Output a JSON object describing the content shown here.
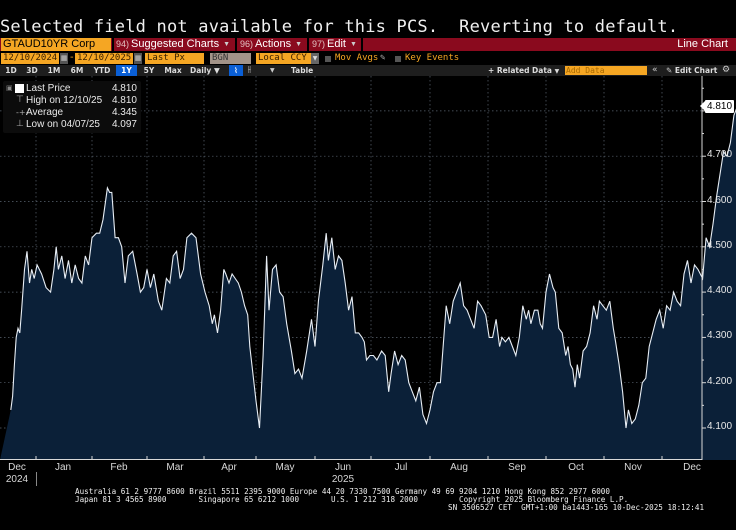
{
  "message": "Selected field not available for this PCS.  Reverting to default.",
  "toolbar": {
    "ticker": "GTAUD10YR Corp",
    "menus": [
      {
        "num": "94)",
        "label": "Suggested Charts"
      },
      {
        "num": "96)",
        "label": "Actions"
      },
      {
        "num": "97)",
        "label": "Edit"
      }
    ],
    "chart_type": "Line Chart"
  },
  "controls": {
    "start_date": "12/10/2024",
    "date_separator": "-",
    "end_date": "12/10/2025",
    "field": "Last Px",
    "source": "BGN",
    "currency": "Local CCY",
    "mov_avgs": "Mov Avgs",
    "key_events": "Key Events"
  },
  "ranges": [
    "1D",
    "3D",
    "1M",
    "6M",
    "YTD",
    "1Y",
    "5Y",
    "Max"
  ],
  "selected_range": "1Y",
  "frequency": "Daily",
  "table_label": "Table",
  "related_data": "Related Data",
  "add_data_placeholder": "Add Data",
  "edit_chart": "Edit Chart",
  "legend": {
    "rows": [
      {
        "label": "Last Price",
        "value": "4.810"
      },
      {
        "label": "High on 12/10/25",
        "value": "4.810"
      },
      {
        "label": "Average",
        "value": "4.345"
      },
      {
        "label": "Low on 04/07/25",
        "value": "4.097"
      }
    ]
  },
  "colors": {
    "accent_orange": "#f5a623",
    "menu_red": "#8a0a1e",
    "area_fill": "#0b2038",
    "line": "#e8eef5",
    "selected_blue": "#0a5fd6"
  },
  "chart_data": {
    "type": "area",
    "title": "GTAUD10YR Corp",
    "ylabel": "",
    "xlabel": "",
    "ylim": [
      4.03,
      4.87
    ],
    "y_ticks": [
      "4.100",
      "4.200",
      "4.300",
      "4.400",
      "4.500",
      "4.600",
      "4.700",
      "4.800"
    ],
    "x_ticks": [
      "Dec",
      "Jan",
      "Feb",
      "Mar",
      "Apr",
      "May",
      "Jun",
      "Jul",
      "Aug",
      "Sep",
      "Oct",
      "Nov",
      "Dec"
    ],
    "x_year_labels": [
      {
        "label": "2024",
        "month_index": 0
      },
      {
        "label": "2025",
        "month_index": 6
      }
    ],
    "last_value_label": "4.810",
    "grid": true,
    "x_unit": "months since 2024-12-10",
    "series": [
      {
        "name": "Last Price",
        "points": [
          [
            0.0,
            4.14
          ],
          [
            0.05,
            4.17
          ],
          [
            0.1,
            4.24
          ],
          [
            0.15,
            4.3
          ],
          [
            0.2,
            4.32
          ],
          [
            0.25,
            4.31
          ],
          [
            0.3,
            4.36
          ],
          [
            0.38,
            4.45
          ],
          [
            0.45,
            4.49
          ],
          [
            0.52,
            4.42
          ],
          [
            0.58,
            4.45
          ],
          [
            0.65,
            4.43
          ],
          [
            0.72,
            4.46
          ],
          [
            0.8,
            4.44
          ],
          [
            0.88,
            4.41
          ],
          [
            0.96,
            4.4
          ],
          [
            1.02,
            4.45
          ],
          [
            1.06,
            4.5
          ],
          [
            1.1,
            4.45
          ],
          [
            1.16,
            4.48
          ],
          [
            1.22,
            4.43
          ],
          [
            1.28,
            4.47
          ],
          [
            1.34,
            4.42
          ],
          [
            1.4,
            4.46
          ],
          [
            1.46,
            4.43
          ],
          [
            1.52,
            4.42
          ],
          [
            1.58,
            4.48
          ],
          [
            1.64,
            4.46
          ],
          [
            1.7,
            4.52
          ],
          [
            1.78,
            4.53
          ],
          [
            1.84,
            4.53
          ],
          [
            1.9,
            4.56
          ],
          [
            1.98,
            4.63
          ],
          [
            2.02,
            4.62
          ],
          [
            2.06,
            4.62
          ],
          [
            2.12,
            4.52
          ],
          [
            2.18,
            4.52
          ],
          [
            2.24,
            4.5
          ],
          [
            2.3,
            4.42
          ],
          [
            2.36,
            4.48
          ],
          [
            2.44,
            4.49
          ],
          [
            2.52,
            4.44
          ],
          [
            2.58,
            4.4
          ],
          [
            2.64,
            4.41
          ],
          [
            2.7,
            4.45
          ],
          [
            2.76,
            4.41
          ],
          [
            2.82,
            4.44
          ],
          [
            2.9,
            4.38
          ],
          [
            2.96,
            4.36
          ],
          [
            3.04,
            4.43
          ],
          [
            3.1,
            4.42
          ],
          [
            3.16,
            4.48
          ],
          [
            3.22,
            4.49
          ],
          [
            3.28,
            4.43
          ],
          [
            3.34,
            4.45
          ],
          [
            3.4,
            4.52
          ],
          [
            3.48,
            4.53
          ],
          [
            3.56,
            4.52
          ],
          [
            3.64,
            4.44
          ],
          [
            3.72,
            4.4
          ],
          [
            3.8,
            4.37
          ],
          [
            3.86,
            4.33
          ],
          [
            3.9,
            4.35
          ],
          [
            3.96,
            4.31
          ],
          [
            4.02,
            4.36
          ],
          [
            4.08,
            4.45
          ],
          [
            4.12,
            4.44
          ],
          [
            4.18,
            4.42
          ],
          [
            4.24,
            4.44
          ],
          [
            4.3,
            4.43
          ],
          [
            4.36,
            4.42
          ],
          [
            4.42,
            4.4
          ],
          [
            4.48,
            4.37
          ],
          [
            4.54,
            4.35
          ],
          [
            4.58,
            4.28
          ],
          [
            4.64,
            4.22
          ],
          [
            4.7,
            4.16
          ],
          [
            4.76,
            4.1
          ],
          [
            4.82,
            4.26
          ],
          [
            4.88,
            4.48
          ],
          [
            4.92,
            4.36
          ],
          [
            4.98,
            4.45
          ],
          [
            5.04,
            4.46
          ],
          [
            5.1,
            4.4
          ],
          [
            5.16,
            4.39
          ],
          [
            5.22,
            4.33
          ],
          [
            5.3,
            4.27
          ],
          [
            5.36,
            4.22
          ],
          [
            5.42,
            4.23
          ],
          [
            5.48,
            4.21
          ],
          [
            5.56,
            4.27
          ],
          [
            5.64,
            4.34
          ],
          [
            5.7,
            4.28
          ],
          [
            5.76,
            4.38
          ],
          [
            5.84,
            4.46
          ],
          [
            5.9,
            4.53
          ],
          [
            5.94,
            4.47
          ],
          [
            6.0,
            4.52
          ],
          [
            6.06,
            4.45
          ],
          [
            6.12,
            4.48
          ],
          [
            6.18,
            4.47
          ],
          [
            6.24,
            4.42
          ],
          [
            6.3,
            4.36
          ],
          [
            6.36,
            4.39
          ],
          [
            6.42,
            4.31
          ],
          [
            6.48,
            4.31
          ],
          [
            6.54,
            4.3
          ],
          [
            6.58,
            4.29
          ],
          [
            6.62,
            4.25
          ],
          [
            6.68,
            4.26
          ],
          [
            6.74,
            4.26
          ],
          [
            6.8,
            4.25
          ],
          [
            6.88,
            4.27
          ],
          [
            6.94,
            4.26
          ],
          [
            7.0,
            4.18
          ],
          [
            7.04,
            4.22
          ],
          [
            7.1,
            4.27
          ],
          [
            7.16,
            4.24
          ],
          [
            7.22,
            4.26
          ],
          [
            7.28,
            4.25
          ],
          [
            7.34,
            4.2
          ],
          [
            7.4,
            4.18
          ],
          [
            7.46,
            4.16
          ],
          [
            7.52,
            4.19
          ],
          [
            7.58,
            4.13
          ],
          [
            7.64,
            4.11
          ],
          [
            7.7,
            4.14
          ],
          [
            7.76,
            4.18
          ],
          [
            7.82,
            4.2
          ],
          [
            7.88,
            4.2
          ],
          [
            7.92,
            4.27
          ],
          [
            7.98,
            4.37
          ],
          [
            8.04,
            4.33
          ],
          [
            8.1,
            4.38
          ],
          [
            8.16,
            4.4
          ],
          [
            8.22,
            4.42
          ],
          [
            8.28,
            4.37
          ],
          [
            8.34,
            4.36
          ],
          [
            8.4,
            4.34
          ],
          [
            8.46,
            4.32
          ],
          [
            8.52,
            4.38
          ],
          [
            8.58,
            4.37
          ],
          [
            8.66,
            4.35
          ],
          [
            8.72,
            4.3
          ],
          [
            8.78,
            4.3
          ],
          [
            8.84,
            4.34
          ],
          [
            8.9,
            4.28
          ],
          [
            8.94,
            4.3
          ],
          [
            9.0,
            4.29
          ],
          [
            9.06,
            4.3
          ],
          [
            9.12,
            4.28
          ],
          [
            9.18,
            4.26
          ],
          [
            9.24,
            4.3
          ],
          [
            9.3,
            4.37
          ],
          [
            9.36,
            4.34
          ],
          [
            9.4,
            4.36
          ],
          [
            9.44,
            4.33
          ],
          [
            9.5,
            4.36
          ],
          [
            9.56,
            4.36
          ],
          [
            9.6,
            4.33
          ],
          [
            9.64,
            4.32
          ],
          [
            9.7,
            4.4
          ],
          [
            9.76,
            4.44
          ],
          [
            9.82,
            4.41
          ],
          [
            9.86,
            4.4
          ],
          [
            9.92,
            4.32
          ],
          [
            9.98,
            4.31
          ],
          [
            10.04,
            4.26
          ],
          [
            10.08,
            4.28
          ],
          [
            10.12,
            4.24
          ],
          [
            10.16,
            4.23
          ],
          [
            10.2,
            4.19
          ],
          [
            10.24,
            4.24
          ],
          [
            10.28,
            4.21
          ],
          [
            10.34,
            4.27
          ],
          [
            10.4,
            4.28
          ],
          [
            10.46,
            4.31
          ],
          [
            10.52,
            4.37
          ],
          [
            10.58,
            4.34
          ],
          [
            10.62,
            4.38
          ],
          [
            10.68,
            4.37
          ],
          [
            10.74,
            4.36
          ],
          [
            10.8,
            4.38
          ],
          [
            10.86,
            4.32
          ],
          [
            10.9,
            4.29
          ],
          [
            10.96,
            4.24
          ],
          [
            11.02,
            4.18
          ],
          [
            11.08,
            4.1
          ],
          [
            11.12,
            4.14
          ],
          [
            11.18,
            4.11
          ],
          [
            11.24,
            4.12
          ],
          [
            11.3,
            4.15
          ],
          [
            11.36,
            4.2
          ],
          [
            11.42,
            4.21
          ],
          [
            11.48,
            4.28
          ],
          [
            11.54,
            4.31
          ],
          [
            11.6,
            4.34
          ],
          [
            11.66,
            4.36
          ],
          [
            11.72,
            4.32
          ],
          [
            11.78,
            4.37
          ],
          [
            11.84,
            4.36
          ],
          [
            11.9,
            4.4
          ],
          [
            11.96,
            4.38
          ],
          [
            12.02,
            4.37
          ],
          [
            12.08,
            4.44
          ],
          [
            12.14,
            4.47
          ],
          [
            12.2,
            4.42
          ],
          [
            12.26,
            4.46
          ],
          [
            12.32,
            4.45
          ],
          [
            12.4,
            4.43
          ],
          [
            12.46,
            4.52
          ],
          [
            12.52,
            4.5
          ],
          [
            12.58,
            4.55
          ],
          [
            12.64,
            4.61
          ],
          [
            12.7,
            4.66
          ],
          [
            12.76,
            4.71
          ],
          [
            12.82,
            4.7
          ],
          [
            12.88,
            4.73
          ],
          [
            12.94,
            4.79
          ],
          [
            13.0,
            4.81
          ]
        ]
      }
    ],
    "summary": {
      "last": 4.81,
      "high": 4.81,
      "high_date": "12/10/25",
      "average": 4.345,
      "low": 4.097,
      "low_date": "04/07/25"
    }
  },
  "footer": {
    "line1": "Australia 61 2 9777 8600 Brazil 5511 2395 9000 Europe 44 20 7330 7500 Germany 49 69 9204 1210 Hong Kong 852 2977 6000",
    "line2": "Japan 81 3 4565 8900       Singapore 65 6212 1000       U.S. 1 212 318 2000         Copyright 2025 Bloomberg Finance L.P.",
    "line3": "SN 3506527 CET  GMT+1:00 ba1443-165 10-Dec-2025 18:12:41"
  }
}
